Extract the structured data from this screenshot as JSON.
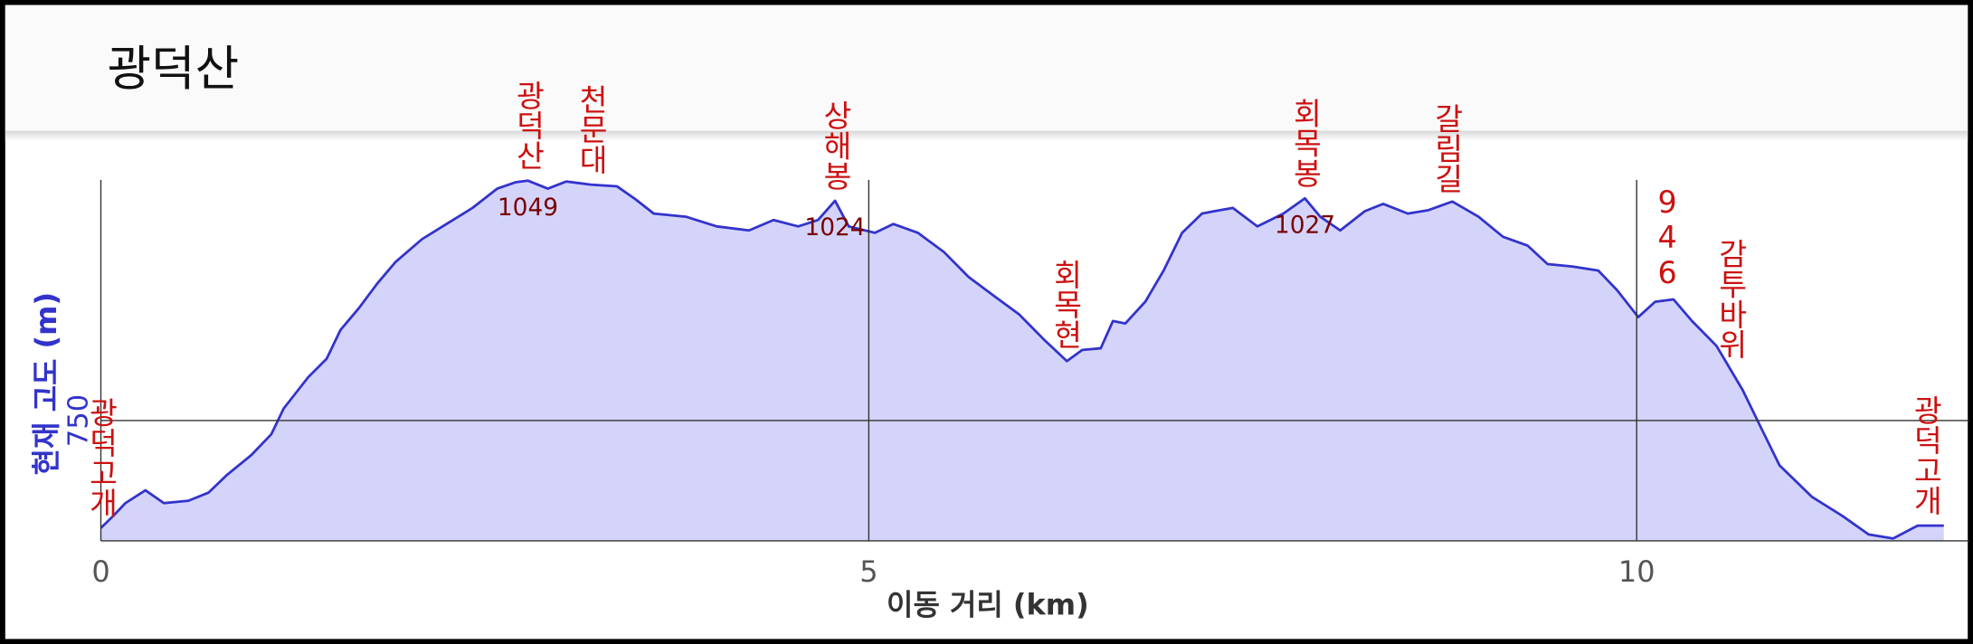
{
  "chart_data": {
    "type": "area",
    "title": "광덕산",
    "x_label": "이동 거리 (km)",
    "y_label": "현재 고도 (m)",
    "xlim": [
      0,
      12
    ],
    "ylim": [
      600,
      1050
    ],
    "xticks": [
      0,
      5,
      10
    ],
    "yticks": [
      750
    ],
    "grid": true,
    "series": [
      {
        "color": "#3333cc",
        "fill": "#d4d4fa",
        "x": [
          0,
          0.08,
          0.16,
          0.29,
          0.41,
          0.57,
          0.7,
          0.82,
          0.98,
          1.11,
          1.19,
          1.35,
          1.47,
          1.56,
          1.68,
          1.8,
          1.92,
          2.09,
          2.25,
          2.42,
          2.58,
          2.7,
          2.78,
          2.91,
          3.03,
          3.19,
          3.36,
          3.48,
          3.6,
          3.81,
          4.01,
          4.22,
          4.38,
          4.54,
          4.67,
          4.78,
          4.87,
          5.04,
          5.16,
          5.32,
          5.49,
          5.65,
          5.81,
          5.98,
          6.14,
          6.29,
          6.39,
          6.51,
          6.59,
          6.67,
          6.8,
          6.92,
          7.04,
          7.17,
          7.25,
          7.37,
          7.53,
          7.7,
          7.84,
          7.94,
          8.07,
          8.23,
          8.35,
          8.51,
          8.64,
          8.8,
          8.97,
          9.13,
          9.29,
          9.42,
          9.58,
          9.75,
          9.87,
          10.01,
          10.12,
          10.24,
          10.36,
          10.52,
          10.69,
          10.81,
          10.93,
          11.14,
          11.34,
          11.51,
          11.67,
          11.83,
          12
        ],
        "values": [
          616,
          631,
          647,
          663,
          647,
          650,
          660,
          682,
          707,
          733,
          765,
          804,
          827,
          863,
          890,
          921,
          948,
          976,
          995,
          1015,
          1039,
          1047,
          1049,
          1039,
          1048,
          1044,
          1042,
          1026,
          1008,
          1004,
          992,
          987,
          1000,
          992,
          1000,
          1024,
          992,
          984,
          995,
          984,
          960,
          929,
          906,
          882,
          851,
          824,
          838,
          840,
          874,
          871,
          898,
          937,
          984,
          1008,
          1011,
          1015,
          992,
          1008,
          1027,
          1004,
          987,
          1011,
          1020,
          1008,
          1012,
          1023,
          1004,
          979,
          968,
          945,
          942,
          937,
          913,
          879,
          898,
          901,
          874,
          843,
          788,
          741,
          694,
          655,
          631,
          608,
          603,
          619,
          619
        ]
      }
    ],
    "annotations": [
      {
        "x": 0,
        "label": "광덕고개"
      },
      {
        "x": 2.78,
        "label": "광덕산",
        "value": 1049
      },
      {
        "x": 3.19,
        "label": "천문대"
      },
      {
        "x": 4.78,
        "label": "상해봉",
        "value": 1024
      },
      {
        "x": 6.28,
        "label": "회목현"
      },
      {
        "x": 7.84,
        "label": "회목봉",
        "value": 1027
      },
      {
        "x": 8.76,
        "label": "갈림길"
      },
      {
        "x": 10.2,
        "label": "946"
      },
      {
        "x": 10.61,
        "label": "감투바위"
      },
      {
        "x": 11.88,
        "label": "광덕고개"
      }
    ]
  }
}
